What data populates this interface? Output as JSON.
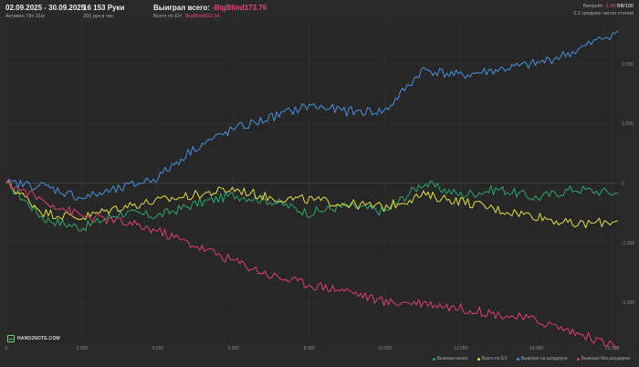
{
  "header": {
    "date_range": "02.09.2025 - 30.09.2025",
    "active": "Активен 79ч 31м",
    "hands": "16 153 Руки",
    "hands_per_hour": "203 рук в час",
    "won_total_label": "Выиграл всего:",
    "won_total_value": "-BigBlind173.76",
    "ev_label": "Всего по EV:",
    "ev_value": "-BigBlind632.34",
    "winrate_label": "Винрейт",
    "winrate_value": "-1.08",
    "winrate_unit": "BB/100",
    "tables": "2.2 среднее число столов"
  },
  "logo": {
    "text": "HAND2NOTE.COM"
  },
  "legend": [
    {
      "label": "Выиграл всего",
      "color": "#2fa66b"
    },
    {
      "label": "Всего по EV",
      "color": "#e3dd4a"
    },
    {
      "label": "Выиграл на шоудауне",
      "color": "#4a90e2"
    },
    {
      "label": "Выиграл без шоудауна",
      "color": "#e0406f"
    }
  ],
  "chart_data": {
    "type": "line",
    "xlim": [
      0,
      16153
    ],
    "ylim": [
      -2700,
      2700
    ],
    "x_ticks": [
      0,
      2000,
      4000,
      6000,
      8000,
      10000,
      12000,
      14000,
      16000
    ],
    "x_tick_labels": [
      "0",
      "2.000",
      "4.000",
      "6.000",
      "8.000",
      "10.000",
      "12.000",
      "14.000",
      "16.000"
    ],
    "y_ticks": [
      2000,
      1000,
      0,
      -1000,
      -2000
    ],
    "y_tick_labels": [
      "2.000",
      "1.000",
      "0",
      "-1.000",
      "-2.000"
    ],
    "grid": true,
    "legend_position": "bottom-right",
    "x": [
      0,
      1000,
      2000,
      3000,
      4000,
      5000,
      6000,
      7000,
      8000,
      9000,
      10000,
      11000,
      12000,
      13000,
      14000,
      15000,
      16153
    ],
    "series": [
      {
        "name": "Выиграл всего",
        "color": "#2fa66b",
        "values": [
          0,
          -600,
          -750,
          -500,
          -550,
          -350,
          -200,
          -300,
          -500,
          -380,
          -480,
          0,
          -200,
          -100,
          -250,
          -100,
          -174
        ]
      },
      {
        "name": "Всего по EV",
        "color": "#e3dd4a",
        "values": [
          0,
          -500,
          -580,
          -400,
          -300,
          -200,
          -100,
          -250,
          -280,
          -350,
          -400,
          -200,
          -300,
          -450,
          -550,
          -700,
          -632
        ]
      },
      {
        "name": "Выиграл на шоудауне",
        "color": "#4a90e2",
        "values": [
          0,
          -50,
          -250,
          -100,
          100,
          600,
          900,
          1100,
          1300,
          1200,
          1200,
          1900,
          1800,
          1900,
          2000,
          2200,
          2550
        ]
      },
      {
        "name": "Выиграл без шоудауна",
        "color": "#e0406f",
        "values": [
          0,
          -300,
          -550,
          -650,
          -800,
          -1050,
          -1300,
          -1550,
          -1700,
          -1800,
          -2000,
          -2000,
          -2100,
          -2200,
          -2300,
          -2500,
          -2750
        ]
      }
    ]
  }
}
